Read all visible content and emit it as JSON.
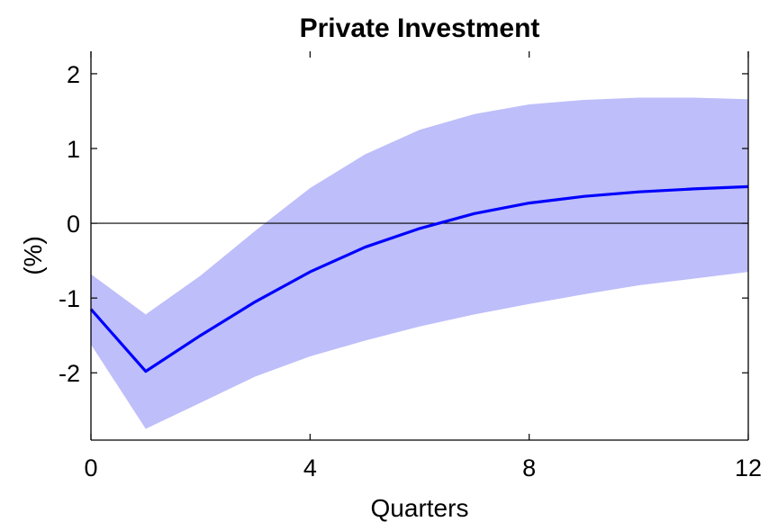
{
  "chart_data": {
    "type": "area",
    "title": "Private Investment",
    "xlabel": "Quarters",
    "ylabel": "(%)",
    "xlim": [
      0,
      12
    ],
    "ylim": [
      -2.9,
      2.3
    ],
    "x_ticks": [
      0,
      4,
      8,
      12
    ],
    "x_tick_labels": [
      "0",
      "4",
      "8",
      "12"
    ],
    "y_ticks": [
      -2,
      -1,
      0,
      1,
      2
    ],
    "y_tick_labels": [
      "-2",
      "-1",
      "0",
      "1",
      "2"
    ],
    "zero_line": true,
    "grid": false,
    "legend": "none",
    "x": [
      0,
      1,
      2,
      3,
      4,
      5,
      6,
      7,
      8,
      9,
      10,
      11,
      12
    ],
    "series": [
      {
        "role": "median",
        "color": "#0000ff",
        "values": [
          -1.15,
          -1.98,
          -1.5,
          -1.05,
          -0.65,
          -0.32,
          -0.07,
          0.13,
          0.27,
          0.36,
          0.42,
          0.46,
          0.49
        ]
      },
      {
        "role": "band",
        "color": "#bebefa",
        "upper": [
          -0.68,
          -1.22,
          -0.7,
          -0.1,
          0.47,
          0.92,
          1.25,
          1.46,
          1.59,
          1.65,
          1.68,
          1.68,
          1.66
        ],
        "lower": [
          -1.62,
          -2.75,
          -2.4,
          -2.05,
          -1.78,
          -1.57,
          -1.38,
          -1.22,
          -1.08,
          -0.95,
          -0.83,
          -0.74,
          -0.65
        ]
      }
    ],
    "colors": {
      "band": "#bebefa",
      "line": "#0000ff",
      "axes": "#000000",
      "background": "#ffffff"
    }
  }
}
